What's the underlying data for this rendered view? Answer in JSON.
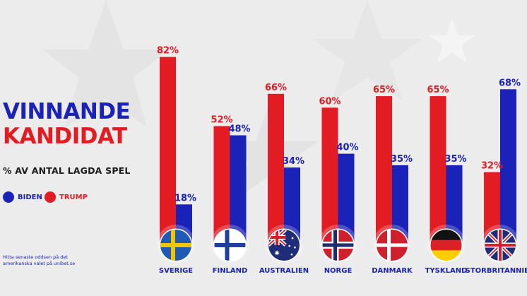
{
  "title": {
    "line1": "VINNANDE",
    "line2": "KANDIDAT"
  },
  "subtitle": "% AV ANTAL LAGDA SPEL",
  "legend": {
    "biden": "BIDEN",
    "trump": "TRUMP"
  },
  "footnote": "Hitta senaste oddsen på det amerikanska valet på unibet.se",
  "colors": {
    "biden": "#1a22b8",
    "trump": "#e31b23",
    "background": "#ececec"
  },
  "chart_data": {
    "type": "bar",
    "categories": [
      "SVERIGE",
      "FINLAND",
      "AUSTRALIEN",
      "NORGE",
      "DANMARK",
      "TYSKLAND",
      "STORBRITANNIEN"
    ],
    "flags": [
      "sweden-flag",
      "finland-flag",
      "australia-flag",
      "norway-flag",
      "denmark-flag",
      "germany-flag",
      "uk-flag"
    ],
    "series": [
      {
        "name": "TRUMP",
        "values": [
          82,
          52,
          66,
          60,
          65,
          65,
          32
        ],
        "labels": [
          "82%",
          "52%",
          "66%",
          "60%",
          "65%",
          "65%",
          "32%"
        ]
      },
      {
        "name": "BIDEN",
        "values": [
          18,
          48,
          34,
          40,
          35,
          35,
          68
        ],
        "labels": [
          "18%",
          "48%",
          "34%",
          "40%",
          "35%",
          "35%",
          "68%"
        ]
      }
    ],
    "ylim": [
      0,
      100
    ],
    "grid": false,
    "legend_position": "left"
  }
}
